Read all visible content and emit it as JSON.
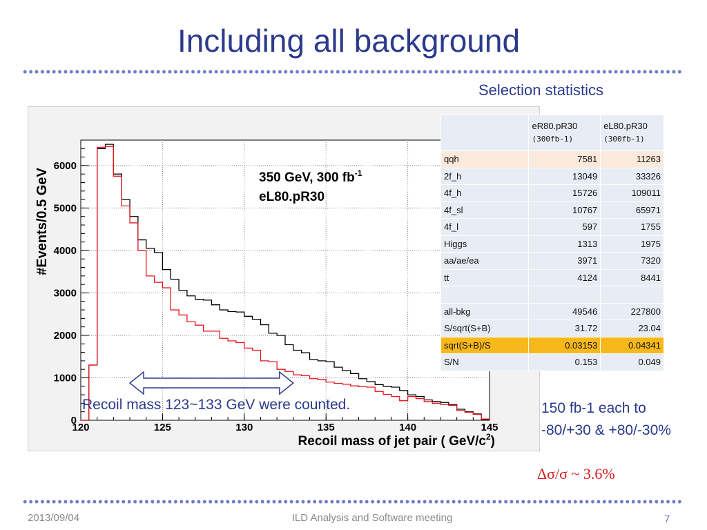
{
  "slide": {
    "title": "Including all background",
    "selection_label": "Selection statistics",
    "note_line1": "150 fb-1 each to",
    "note_line2": "-80/+30 & +80/-30%",
    "sigma_result": "Δσ/σ ~ 3.6%",
    "footer_date": "2013/09/04",
    "footer_meeting": "ILD Analysis and Software meeting",
    "page_number": "7"
  },
  "table": {
    "col_headers": [
      {
        "line1": "eR80.pR30",
        "line2": "(300fb-1)"
      },
      {
        "line1": "eL80.pR30",
        "line2": "(300fb-1)"
      }
    ],
    "rows": [
      {
        "label": "qqh",
        "v1": "7581",
        "v2": "11263"
      },
      {
        "label": "2f_h",
        "v1": "13049",
        "v2": "33326"
      },
      {
        "label": "4f_h",
        "v1": "15726",
        "v2": "109011"
      },
      {
        "label": "4f_sl",
        "v1": "10767",
        "v2": "65971"
      },
      {
        "label": "4f_l",
        "v1": "597",
        "v2": "1755"
      },
      {
        "label": "Higgs",
        "v1": "1313",
        "v2": "1975"
      },
      {
        "label": "aa/ae/ea",
        "v1": "3971",
        "v2": "7320"
      },
      {
        "label": "tt",
        "v1": "4124",
        "v2": "8441"
      },
      {
        "label": "",
        "v1": "",
        "v2": ""
      },
      {
        "label": "all-bkg",
        "v1": "49546",
        "v2": "227800"
      },
      {
        "label": "S/sqrt(S+B)",
        "v1": "31.72",
        "v2": "23.04"
      },
      {
        "label": "sqrt(S+B)/S",
        "v1": "0.03153",
        "v2": "0.04341"
      },
      {
        "label": "S/N",
        "v1": "0.153",
        "v2": "0.049"
      }
    ]
  },
  "chart_data": {
    "type": "line",
    "style": "step-histogram",
    "xlabel": "Recoil mass of jet pair ( GeV/c",
    "xlabel_sup": "2",
    "xlabel_end": ")",
    "ylabel": "#Events/0.5 GeV",
    "xlim": [
      120,
      145
    ],
    "ylim": [
      0,
      6600
    ],
    "x_ticks": [
      120,
      125,
      130,
      135,
      140,
      145
    ],
    "y_ticks": [
      0,
      1000,
      2000,
      3000,
      4000,
      5000,
      6000
    ],
    "grid": true,
    "annotation_line1": "350 GeV, 300 fb",
    "annotation_sup": "-1",
    "annotation_line2": "eL80.pR30",
    "range_annotation": "Recoil mass 123~133 GeV were counted.",
    "range_x": [
      123,
      133
    ],
    "bin_edges_start": 120,
    "bin_width": 0.5,
    "series": [
      {
        "color": "#000000",
        "values": [
          0,
          1300,
          6400,
          6500,
          5800,
          5200,
          4800,
          4250,
          4050,
          3950,
          3550,
          3320,
          3060,
          2930,
          2850,
          2830,
          2720,
          2600,
          2560,
          2550,
          2450,
          2380,
          2250,
          2050,
          2000,
          1780,
          1650,
          1590,
          1430,
          1400,
          1380,
          1250,
          1170,
          1100,
          980,
          910,
          840,
          800,
          780,
          700,
          600,
          560,
          480,
          440,
          420,
          370,
          260,
          200,
          150,
          20
        ]
      },
      {
        "color": "#e8141e",
        "values": [
          0,
          1300,
          6430,
          6450,
          5750,
          5050,
          4650,
          4000,
          3400,
          3250,
          3120,
          2600,
          2480,
          2320,
          2240,
          2100,
          2100,
          1930,
          1870,
          1830,
          1700,
          1650,
          1400,
          1380,
          1200,
          1150,
          1070,
          1050,
          980,
          960,
          900,
          870,
          850,
          810,
          790,
          780,
          680,
          610,
          560,
          460,
          560,
          510,
          440,
          400,
          370,
          350,
          230,
          190,
          140,
          30
        ]
      }
    ]
  }
}
